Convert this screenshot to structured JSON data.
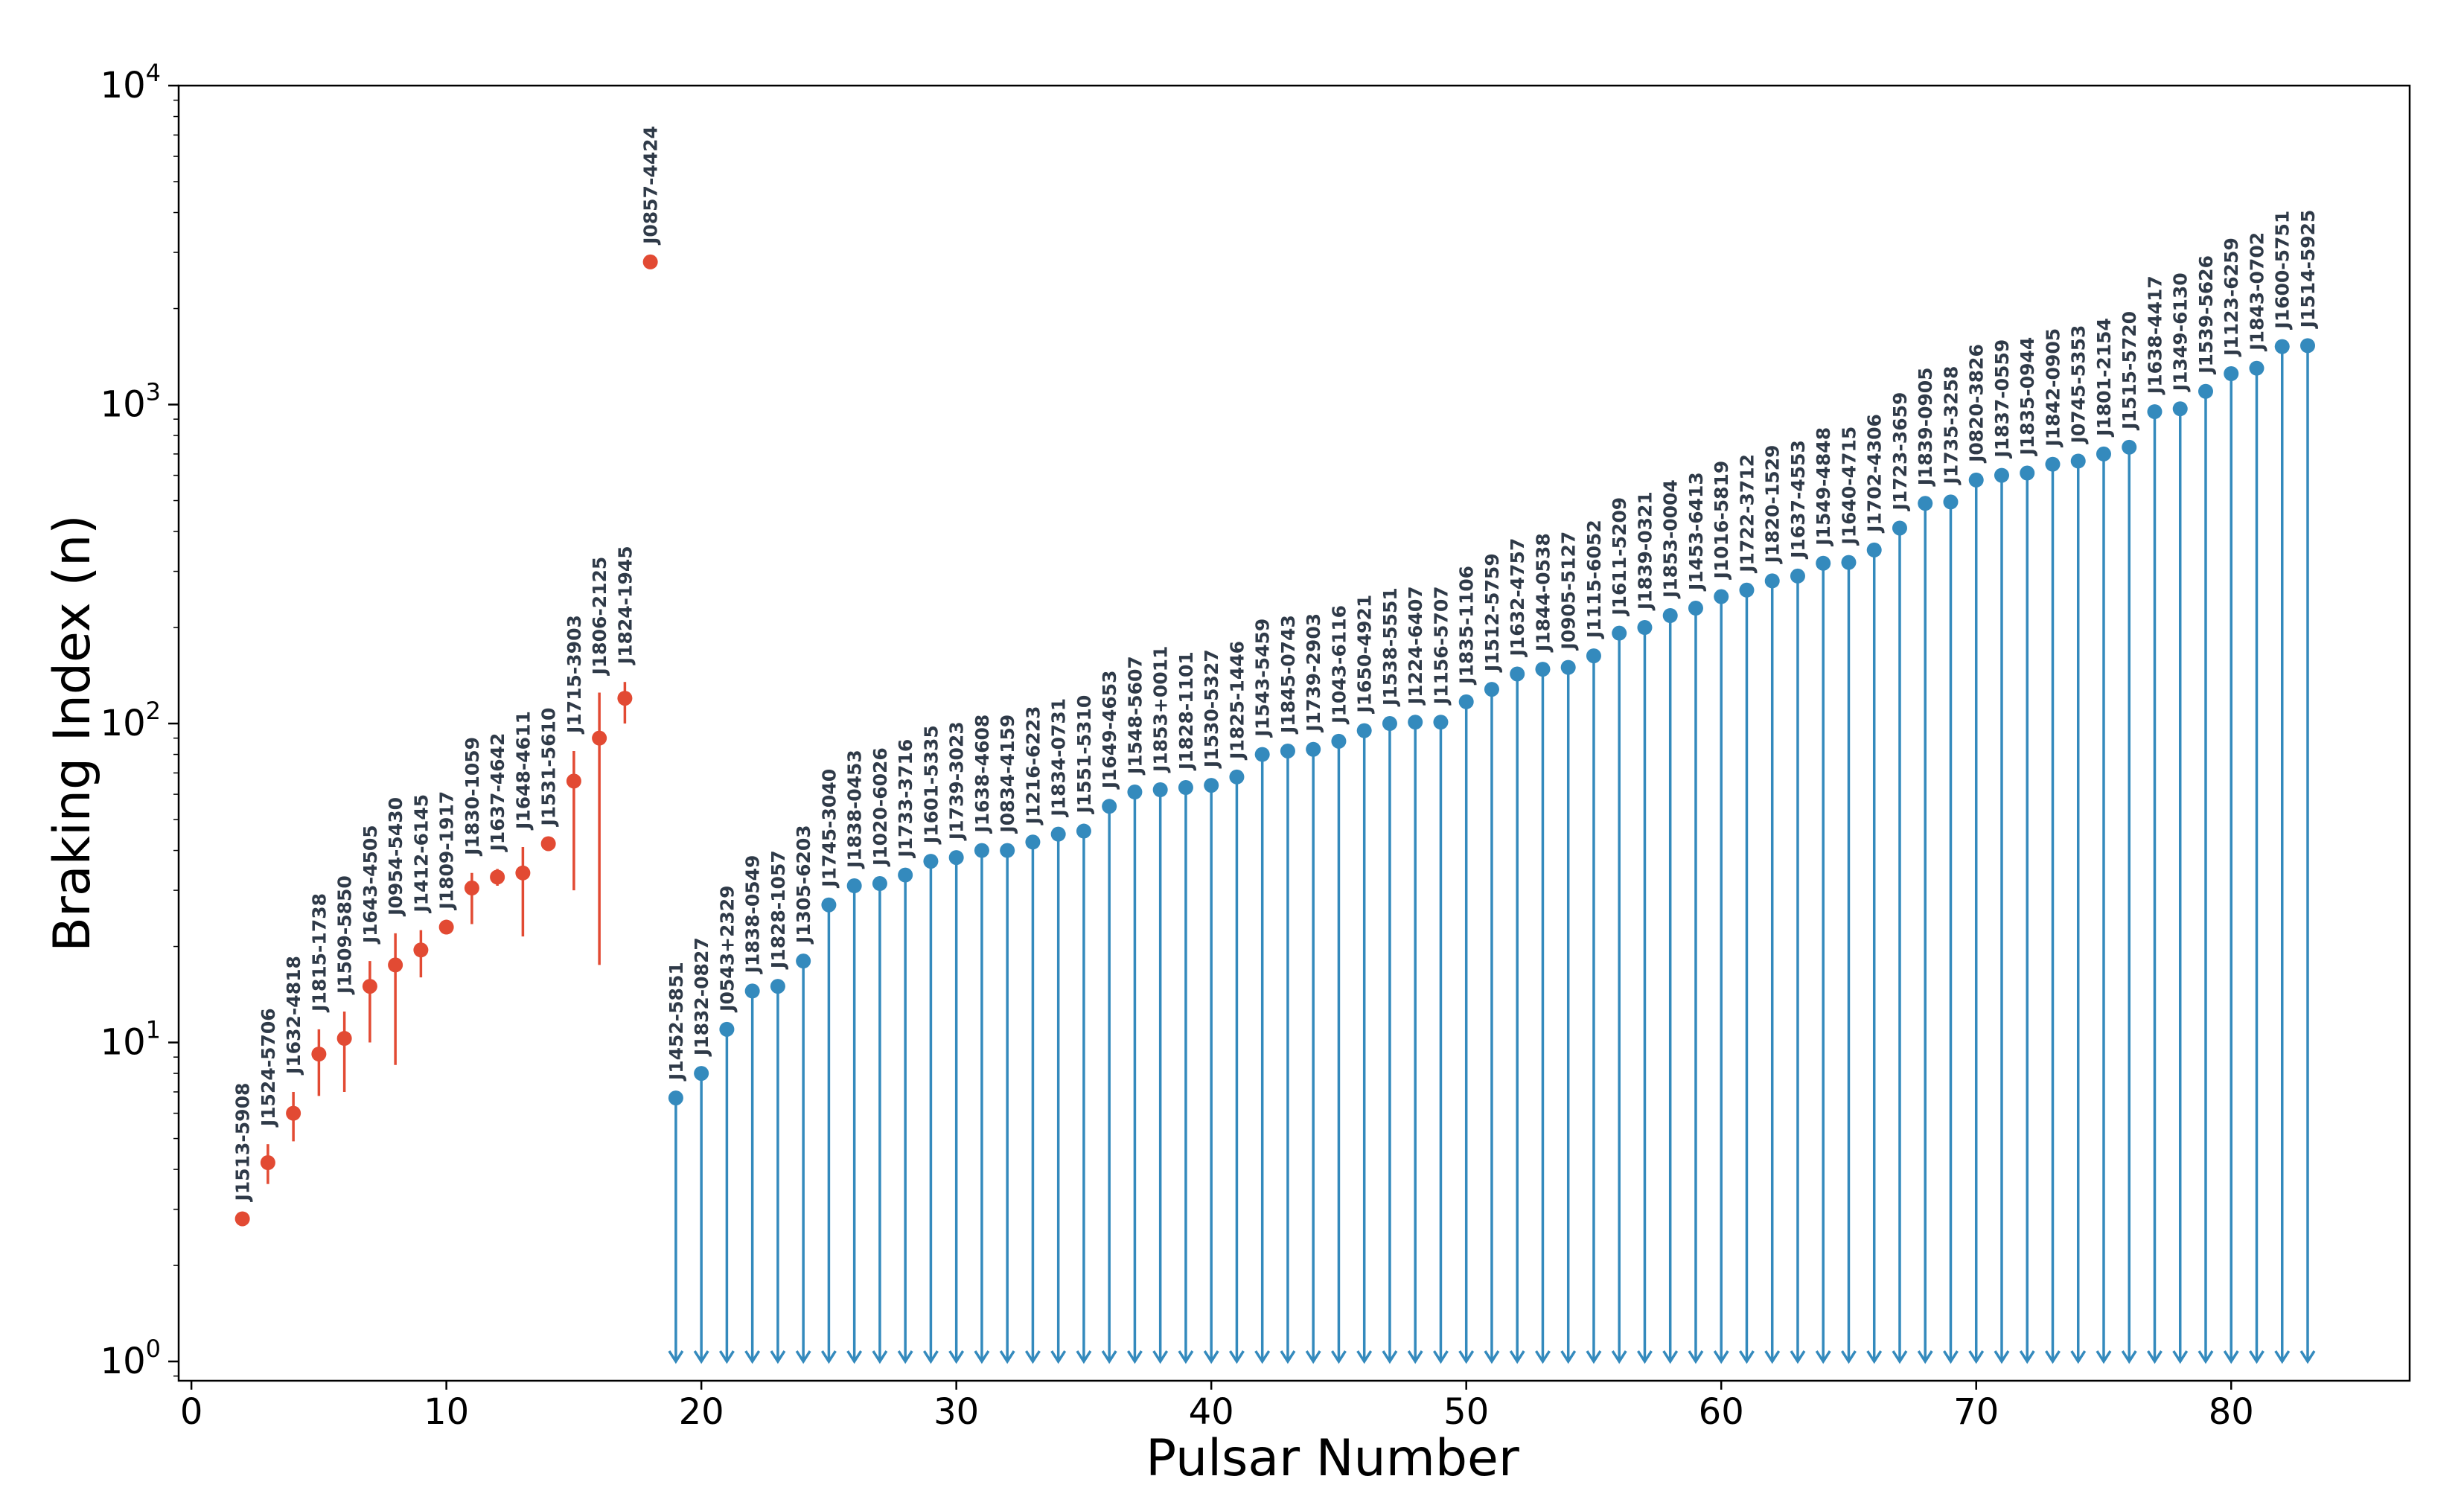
{
  "chart_data": {
    "type": "scatter",
    "xlabel": "Pulsar Number",
    "ylabel": "Braking Index (n)",
    "xlim": [
      -0.5,
      87
    ],
    "ylim": [
      0.87,
      10000
    ],
    "yscale": "log",
    "grid": false,
    "x_ticks": [
      0,
      10,
      20,
      30,
      40,
      50,
      60,
      70,
      80
    ],
    "y_ticks": [
      {
        "value": 1,
        "base": "10",
        "exp": "0"
      },
      {
        "value": 10,
        "base": "10",
        "exp": "1"
      },
      {
        "value": 100,
        "base": "10",
        "exp": "2"
      },
      {
        "value": 1000,
        "base": "10",
        "exp": "3"
      },
      {
        "value": 10000,
        "base": "10",
        "exp": "4"
      }
    ],
    "colors": {
      "measured": "#e24a33",
      "upper_limit": "#348abd"
    },
    "series": [
      {
        "style": "measured",
        "points": [
          {
            "x": 2,
            "y": 2.8,
            "lo": 2.8,
            "hi": 2.8,
            "label": "J1513-5908"
          },
          {
            "x": 3,
            "y": 4.2,
            "lo": 3.6,
            "hi": 4.8,
            "label": "J1524-5706"
          },
          {
            "x": 4,
            "y": 6.0,
            "lo": 4.9,
            "hi": 7.0,
            "label": "J1632-4818"
          },
          {
            "x": 5,
            "y": 9.2,
            "lo": 6.8,
            "hi": 11.0,
            "label": "J1815-1738"
          },
          {
            "x": 6,
            "y": 10.3,
            "lo": 7.0,
            "hi": 12.5,
            "label": "J1509-5850"
          },
          {
            "x": 7,
            "y": 15.0,
            "lo": 10.0,
            "hi": 18.0,
            "label": "J1643-4505"
          },
          {
            "x": 8,
            "y": 17.5,
            "lo": 8.5,
            "hi": 22.0,
            "label": "J0954-5430"
          },
          {
            "x": 9,
            "y": 19.5,
            "lo": 16.0,
            "hi": 22.5,
            "label": "J1412-6145"
          },
          {
            "x": 10,
            "y": 23.0,
            "lo": 23.0,
            "hi": 23.0,
            "label": "J1809-1917"
          },
          {
            "x": 11,
            "y": 30.5,
            "lo": 23.5,
            "hi": 34.0,
            "label": "J1830-1059"
          },
          {
            "x": 12,
            "y": 33.0,
            "lo": 31.0,
            "hi": 35.0,
            "label": "J1637-4642"
          },
          {
            "x": 13,
            "y": 34.0,
            "lo": 21.5,
            "hi": 41.0,
            "label": "J1648-4611"
          },
          {
            "x": 14,
            "y": 42.0,
            "lo": 42.0,
            "hi": 42.0,
            "label": "J1531-5610"
          },
          {
            "x": 15,
            "y": 66.0,
            "lo": 30.0,
            "hi": 82.0,
            "label": "J1715-3903"
          },
          {
            "x": 16,
            "y": 90.0,
            "lo": 17.5,
            "hi": 125.0,
            "label": "J1806-2125"
          },
          {
            "x": 17,
            "y": 120.0,
            "lo": 100.0,
            "hi": 135.0,
            "label": "J1824-1945"
          },
          {
            "x": 18,
            "y": 2800.0,
            "lo": 2800.0,
            "hi": 2800.0,
            "label": "J0857-4424"
          }
        ]
      },
      {
        "style": "upper_limit",
        "points": [
          {
            "x": 19,
            "y": 6.7,
            "label": "J1452-5851"
          },
          {
            "x": 20,
            "y": 8.0,
            "label": "J1832-0827"
          },
          {
            "x": 21,
            "y": 11.0,
            "label": "J0543+2329"
          },
          {
            "x": 22,
            "y": 14.5,
            "label": "J1838-0549"
          },
          {
            "x": 23,
            "y": 15.0,
            "label": "J1828-1057"
          },
          {
            "x": 24,
            "y": 18.0,
            "label": "J1305-6203"
          },
          {
            "x": 25,
            "y": 27.0,
            "label": "J1745-3040"
          },
          {
            "x": 26,
            "y": 31.0,
            "label": "J1838-0453"
          },
          {
            "x": 27,
            "y": 31.5,
            "label": "J1020-6026"
          },
          {
            "x": 28,
            "y": 33.5,
            "label": "J1733-3716"
          },
          {
            "x": 29,
            "y": 37.0,
            "label": "J1601-5335"
          },
          {
            "x": 30,
            "y": 38.0,
            "label": "J1739-3023"
          },
          {
            "x": 31,
            "y": 40.0,
            "label": "J1638-4608"
          },
          {
            "x": 32,
            "y": 40.0,
            "label": "J0834-4159"
          },
          {
            "x": 33,
            "y": 42.5,
            "label": "J1216-6223"
          },
          {
            "x": 34,
            "y": 45.0,
            "label": "J1834-0731"
          },
          {
            "x": 35,
            "y": 46.0,
            "label": "J1551-5310"
          },
          {
            "x": 36,
            "y": 55.0,
            "label": "J1649-4653"
          },
          {
            "x": 37,
            "y": 61.0,
            "label": "J1548-5607"
          },
          {
            "x": 38,
            "y": 62.0,
            "label": "J1853+0011"
          },
          {
            "x": 39,
            "y": 63.0,
            "label": "J1828-1101"
          },
          {
            "x": 40,
            "y": 64.0,
            "label": "J1530-5327"
          },
          {
            "x": 41,
            "y": 68.0,
            "label": "J1825-1446"
          },
          {
            "x": 42,
            "y": 80.0,
            "label": "J1543-5459"
          },
          {
            "x": 43,
            "y": 82.0,
            "label": "J1845-0743"
          },
          {
            "x": 44,
            "y": 83.0,
            "label": "J1739-2903"
          },
          {
            "x": 45,
            "y": 88.0,
            "label": "J1043-6116"
          },
          {
            "x": 46,
            "y": 95.0,
            "label": "J1650-4921"
          },
          {
            "x": 47,
            "y": 100.0,
            "label": "J1538-5551"
          },
          {
            "x": 48,
            "y": 101.0,
            "label": "J1224-6407"
          },
          {
            "x": 49,
            "y": 101.0,
            "label": "J1156-5707"
          },
          {
            "x": 50,
            "y": 117.0,
            "label": "J1835-1106"
          },
          {
            "x": 51,
            "y": 128.0,
            "label": "J1512-5759"
          },
          {
            "x": 52,
            "y": 143.0,
            "label": "J1632-4757"
          },
          {
            "x": 53,
            "y": 148.0,
            "label": "J1844-0538"
          },
          {
            "x": 54,
            "y": 150.0,
            "label": "J0905-5127"
          },
          {
            "x": 55,
            "y": 163.0,
            "label": "J1115-6052"
          },
          {
            "x": 56,
            "y": 192.0,
            "label": "J1611-5209"
          },
          {
            "x": 57,
            "y": 200.0,
            "label": "J1839-0321"
          },
          {
            "x": 58,
            "y": 218.0,
            "label": "J1853-0004"
          },
          {
            "x": 59,
            "y": 230.0,
            "label": "J1453-6413"
          },
          {
            "x": 60,
            "y": 250.0,
            "label": "J1016-5819"
          },
          {
            "x": 61,
            "y": 262.0,
            "label": "J1722-3712"
          },
          {
            "x": 62,
            "y": 280.0,
            "label": "J1820-1529"
          },
          {
            "x": 63,
            "y": 290.0,
            "label": "J1637-4553"
          },
          {
            "x": 64,
            "y": 318.0,
            "label": "J1549-4848"
          },
          {
            "x": 65,
            "y": 320.0,
            "label": "J1640-4715"
          },
          {
            "x": 66,
            "y": 350.0,
            "label": "J1702-4306"
          },
          {
            "x": 67,
            "y": 410.0,
            "label": "J1723-3659"
          },
          {
            "x": 68,
            "y": 490.0,
            "label": "J1839-0905"
          },
          {
            "x": 69,
            "y": 495.0,
            "label": "J1735-3258"
          },
          {
            "x": 70,
            "y": 580.0,
            "label": "J0820-3826"
          },
          {
            "x": 71,
            "y": 600.0,
            "label": "J1837-0559"
          },
          {
            "x": 72,
            "y": 610.0,
            "label": "J1835-0944"
          },
          {
            "x": 73,
            "y": 650.0,
            "label": "J1842-0905"
          },
          {
            "x": 74,
            "y": 665.0,
            "label": "J0745-5353"
          },
          {
            "x": 75,
            "y": 700.0,
            "label": "J1801-2154"
          },
          {
            "x": 76,
            "y": 735.0,
            "label": "J1515-5720"
          },
          {
            "x": 77,
            "y": 950.0,
            "label": "J1638-4417"
          },
          {
            "x": 78,
            "y": 970.0,
            "label": "J1349-6130"
          },
          {
            "x": 79,
            "y": 1100.0,
            "label": "J1539-5626"
          },
          {
            "x": 80,
            "y": 1250.0,
            "label": "J1123-6259"
          },
          {
            "x": 81,
            "y": 1300.0,
            "label": "J1843-0702"
          },
          {
            "x": 82,
            "y": 1520.0,
            "label": "J1600-5751"
          },
          {
            "x": 83,
            "y": 1530.0,
            "label": "J1514-5925"
          }
        ]
      }
    ]
  }
}
